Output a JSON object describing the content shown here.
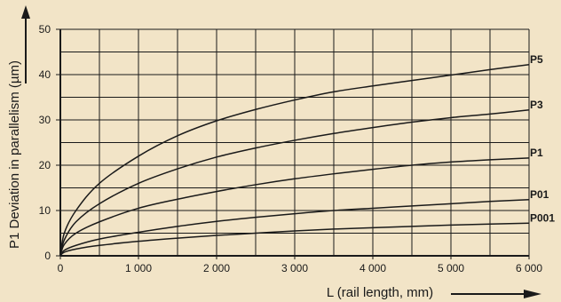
{
  "chart_data": {
    "type": "line",
    "xlabel": "L (rail length, mm)",
    "ylabel": "P1 Deviation in parallelism (µm)",
    "xlim": [
      0,
      6000
    ],
    "ylim": [
      0,
      50
    ],
    "x_ticks": [
      0,
      1000,
      2000,
      3000,
      4000,
      5000,
      6000
    ],
    "x_tick_labels": [
      "0",
      "1 000",
      "2 000",
      "3 000",
      "4 000",
      "5 000",
      "6 000"
    ],
    "y_ticks": [
      0,
      10,
      20,
      30,
      40,
      50
    ],
    "y_tick_labels": [
      "0",
      "10",
      "20",
      "30",
      "40",
      "50"
    ],
    "grid": true,
    "series": [
      {
        "name": "P5",
        "x": [
          0,
          50,
          200,
          500,
          1000,
          1500,
          2000,
          2500,
          3000,
          3500,
          4000,
          4500,
          5000,
          5500,
          6000
        ],
        "values": [
          0,
          5,
          10,
          16,
          22,
          26.5,
          29.8,
          32.3,
          34.4,
          36.2,
          37.5,
          38.7,
          39.9,
          41.1,
          42.2
        ]
      },
      {
        "name": "P3",
        "x": [
          0,
          50,
          200,
          500,
          1000,
          1500,
          2000,
          2500,
          3000,
          3500,
          4000,
          4500,
          5000,
          5500,
          6000
        ],
        "values": [
          0,
          3.5,
          7.5,
          11.5,
          16,
          19.2,
          21.8,
          23.8,
          25.5,
          27,
          28.3,
          29.5,
          30.5,
          31.3,
          32.2
        ]
      },
      {
        "name": "P1",
        "x": [
          0,
          50,
          200,
          500,
          1000,
          1500,
          2000,
          2500,
          3000,
          3500,
          4000,
          4500,
          5000,
          5500,
          6000
        ],
        "values": [
          0,
          2.5,
          5,
          7.5,
          10.5,
          12.5,
          14.2,
          15.7,
          17,
          18.1,
          19.1,
          20,
          20.7,
          21.2,
          21.6
        ]
      },
      {
        "name": "P01",
        "x": [
          0,
          50,
          200,
          500,
          1000,
          1500,
          2000,
          2500,
          3000,
          3500,
          4000,
          4500,
          5000,
          5500,
          6000
        ],
        "values": [
          0,
          1.2,
          2.3,
          3.7,
          5.2,
          6.5,
          7.6,
          8.5,
          9.3,
          10,
          10.5,
          11,
          11.5,
          12,
          12.4
        ]
      },
      {
        "name": "P001",
        "x": [
          0,
          50,
          200,
          500,
          1000,
          1500,
          2000,
          2500,
          3000,
          3500,
          4000,
          4500,
          5000,
          5500,
          6000
        ],
        "values": [
          0,
          0.8,
          1.5,
          2.3,
          3.2,
          3.9,
          4.5,
          5,
          5.5,
          5.9,
          6.2,
          6.5,
          6.8,
          7,
          7.2
        ]
      }
    ]
  }
}
